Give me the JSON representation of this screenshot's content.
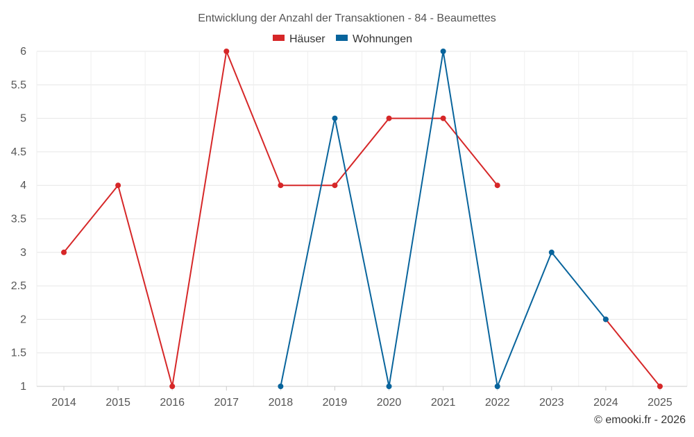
{
  "chart_data": {
    "type": "line",
    "title": "Entwicklung der Anzahl der Transaktionen - 84 - Beaumettes",
    "categories": [
      "2014",
      "2015",
      "2016",
      "2017",
      "2018",
      "2019",
      "2020",
      "2021",
      "2022",
      "2023",
      "2024",
      "2025"
    ],
    "y_ticks": [
      "1",
      "1.5",
      "2",
      "2.5",
      "3",
      "3.5",
      "4",
      "4.5",
      "5",
      "5.5",
      "6"
    ],
    "ylim": [
      1,
      6
    ],
    "grid": true,
    "legend_position": "top-center",
    "series": [
      {
        "name": "Häuser",
        "color": "#d62728",
        "values": [
          3,
          4,
          1,
          6,
          4,
          4,
          5,
          5,
          4,
          null,
          2,
          1
        ]
      },
      {
        "name": "Wohnungen",
        "color": "#08649c",
        "values": [
          null,
          null,
          null,
          null,
          1,
          5,
          1,
          6,
          1,
          3,
          2,
          null
        ]
      }
    ]
  },
  "credit": "© emooki.fr - 2026"
}
